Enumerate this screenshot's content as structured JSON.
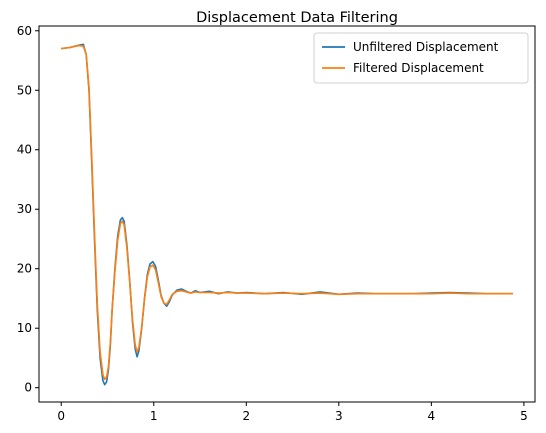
{
  "chart_data": {
    "type": "line",
    "title": "Displacement Data Filtering",
    "xlabel": "",
    "ylabel": "",
    "xlim": [
      -0.24,
      5.12
    ],
    "ylim": [
      -2.4,
      60.8
    ],
    "xticks": [
      0,
      1,
      2,
      3,
      4,
      5
    ],
    "yticks": [
      0,
      10,
      20,
      30,
      40,
      50,
      60
    ],
    "grid": false,
    "legend_position": "upper right",
    "series": [
      {
        "name": "Unfiltered Displacement",
        "color": "#1f77b4",
        "x": [
          0,
          0.05,
          0.1,
          0.15,
          0.2,
          0.24,
          0.27,
          0.3,
          0.33,
          0.36,
          0.39,
          0.42,
          0.45,
          0.47,
          0.49,
          0.51,
          0.53,
          0.55,
          0.58,
          0.61,
          0.64,
          0.66,
          0.68,
          0.71,
          0.74,
          0.77,
          0.8,
          0.82,
          0.84,
          0.87,
          0.9,
          0.93,
          0.96,
          0.99,
          1.02,
          1.05,
          1.08,
          1.11,
          1.14,
          1.17,
          1.2,
          1.25,
          1.3,
          1.35,
          1.4,
          1.45,
          1.5,
          1.6,
          1.7,
          1.8,
          1.9,
          2.0,
          2.2,
          2.4,
          2.6,
          2.8,
          3.0,
          3.2,
          3.4,
          3.6,
          3.8,
          4.0,
          4.2,
          4.4,
          4.6,
          4.88
        ],
        "y": [
          57.0,
          57.1,
          57.2,
          57.4,
          57.6,
          57.7,
          56.0,
          50.0,
          38.0,
          25.0,
          13.0,
          5.0,
          1.2,
          0.5,
          1.0,
          3.0,
          7.0,
          13.0,
          20.0,
          25.5,
          28.2,
          28.6,
          28.0,
          24.0,
          18.0,
          11.0,
          6.5,
          5.2,
          6.2,
          10.0,
          15.0,
          19.0,
          20.8,
          21.2,
          20.4,
          18.0,
          15.5,
          14.2,
          13.7,
          14.5,
          15.6,
          16.4,
          16.6,
          16.2,
          15.9,
          16.3,
          16.0,
          16.2,
          15.8,
          16.1,
          15.9,
          16.0,
          15.8,
          16.0,
          15.7,
          16.1,
          15.7,
          15.9,
          15.8,
          15.8,
          15.8,
          15.9,
          16.0,
          15.9,
          15.8,
          15.8
        ]
      },
      {
        "name": "Filtered Displacement",
        "color": "#ff7f0e",
        "x": [
          0,
          0.05,
          0.1,
          0.15,
          0.2,
          0.24,
          0.27,
          0.3,
          0.33,
          0.36,
          0.39,
          0.42,
          0.45,
          0.47,
          0.49,
          0.51,
          0.53,
          0.55,
          0.58,
          0.61,
          0.64,
          0.66,
          0.68,
          0.71,
          0.74,
          0.77,
          0.8,
          0.82,
          0.84,
          0.87,
          0.9,
          0.93,
          0.96,
          0.99,
          1.02,
          1.05,
          1.08,
          1.11,
          1.14,
          1.17,
          1.2,
          1.25,
          1.3,
          1.35,
          1.4,
          1.45,
          1.5,
          1.6,
          1.7,
          1.8,
          1.9,
          2.0,
          2.2,
          2.4,
          2.6,
          2.8,
          3.0,
          3.2,
          3.4,
          3.6,
          3.8,
          4.0,
          4.2,
          4.4,
          4.6,
          4.88
        ],
        "y": [
          57.0,
          57.1,
          57.2,
          57.4,
          57.5,
          57.4,
          56.0,
          50.5,
          39.0,
          26.0,
          14.0,
          6.0,
          2.2,
          1.4,
          1.8,
          3.5,
          7.5,
          13.0,
          19.5,
          24.8,
          27.6,
          28.0,
          27.4,
          23.5,
          17.8,
          11.5,
          7.2,
          6.0,
          6.8,
          10.2,
          14.8,
          18.6,
          20.3,
          20.6,
          19.8,
          17.6,
          15.3,
          14.2,
          14.0,
          14.8,
          15.7,
          16.2,
          16.3,
          16.1,
          15.9,
          16.1,
          16.0,
          16.0,
          15.9,
          16.0,
          15.9,
          15.9,
          15.8,
          15.9,
          15.8,
          15.9,
          15.7,
          15.8,
          15.8,
          15.8,
          15.8,
          15.8,
          15.9,
          15.8,
          15.8,
          15.8
        ]
      }
    ]
  }
}
